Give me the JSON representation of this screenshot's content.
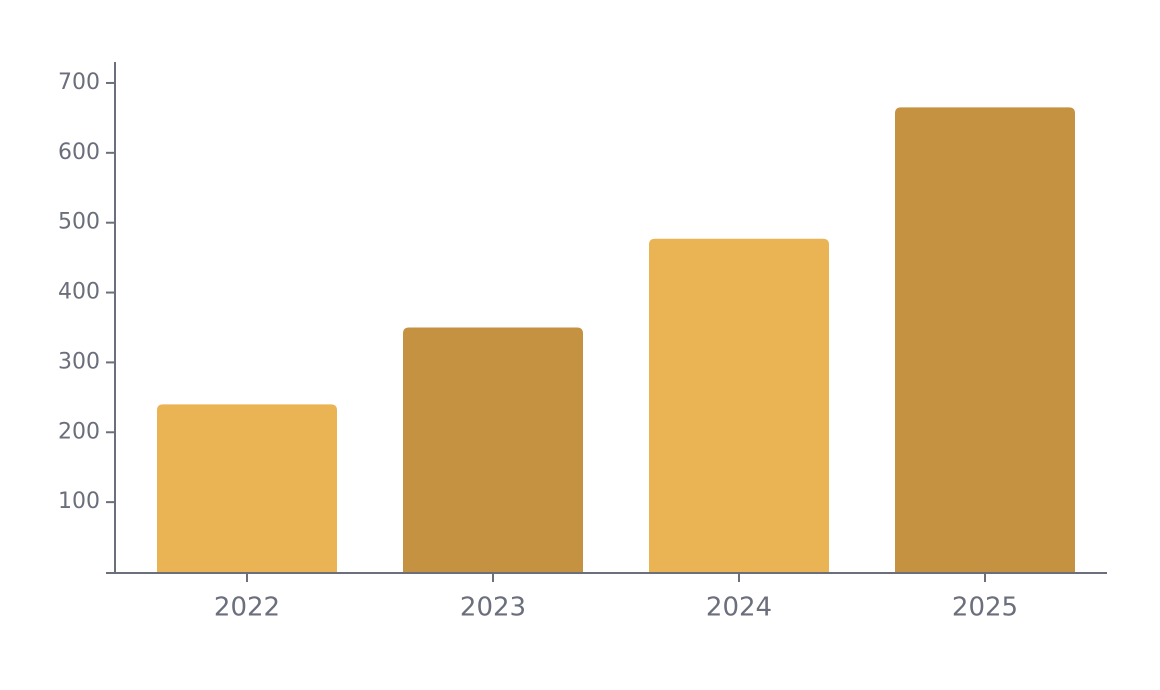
{
  "chart_data": {
    "type": "bar",
    "categories": [
      "2022",
      "2023",
      "2024",
      "2025"
    ],
    "values": [
      240,
      350,
      477,
      665
    ],
    "colors": [
      "#eab354",
      "#c49240",
      "#eab354",
      "#c49240"
    ],
    "ylim": [
      0,
      730
    ],
    "yticks": [
      100,
      200,
      300,
      400,
      500,
      600,
      700
    ],
    "grid": false
  }
}
